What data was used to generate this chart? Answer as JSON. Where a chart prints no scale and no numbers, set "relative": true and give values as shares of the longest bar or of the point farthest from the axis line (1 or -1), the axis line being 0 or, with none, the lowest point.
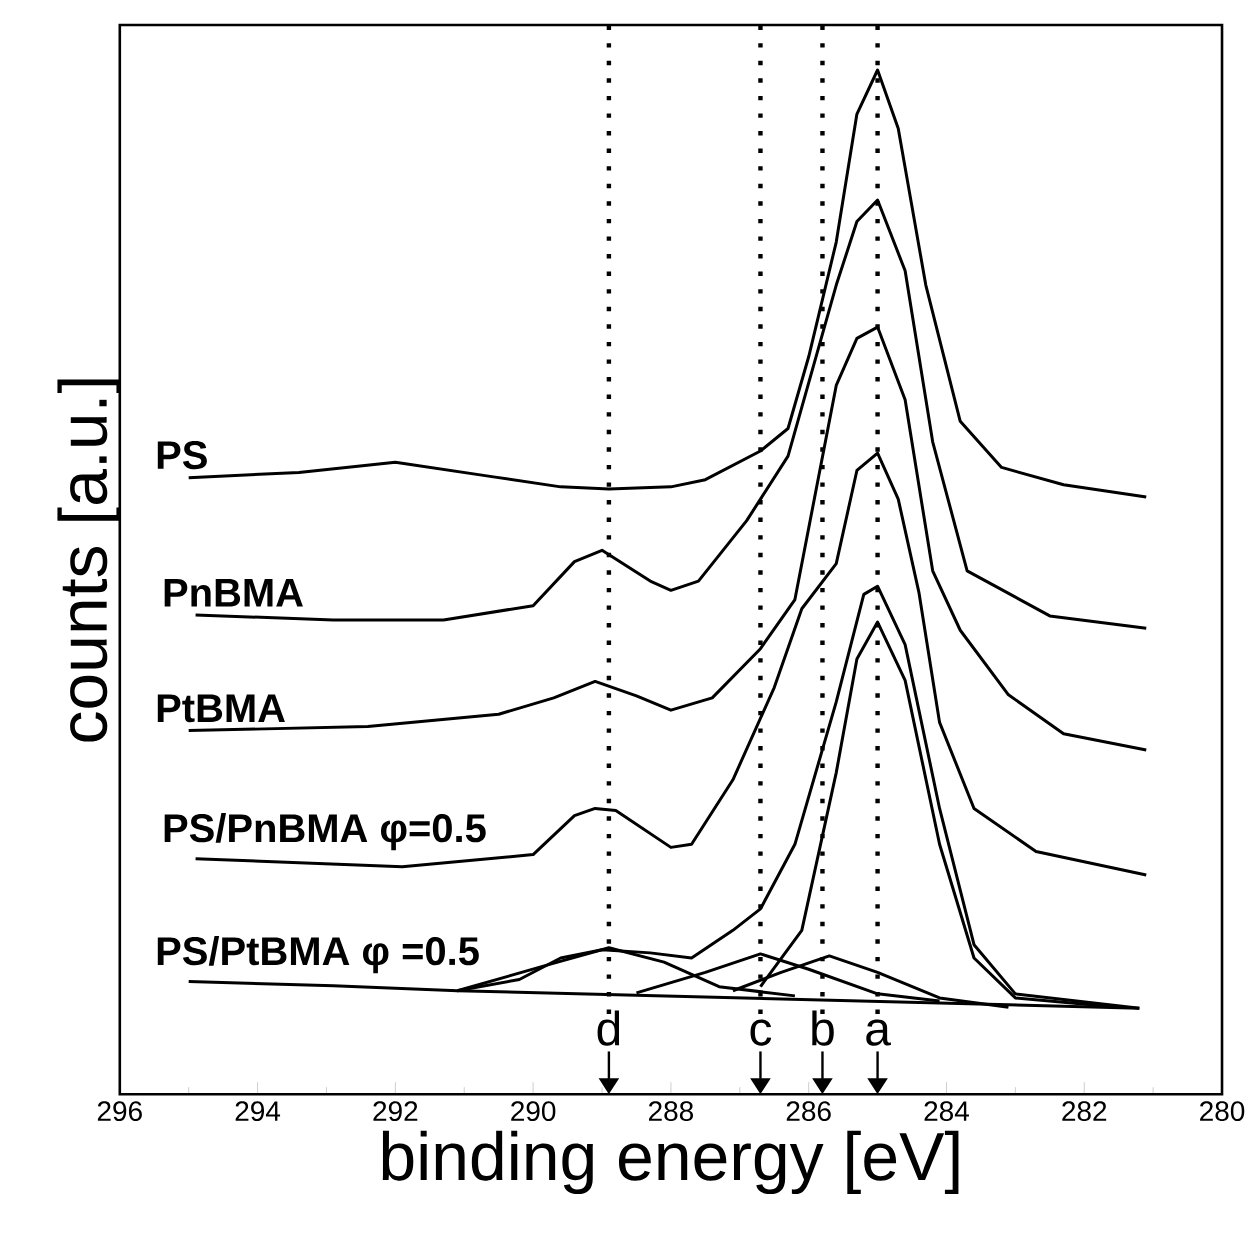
{
  "chart_data": {
    "type": "line",
    "xlabel": "binding energy [eV]",
    "ylabel": "counts [a.u.]",
    "xlim": [
      296,
      280
    ],
    "xticks": [
      296,
      294,
      292,
      290,
      288,
      286,
      284,
      282,
      280
    ],
    "relative": true,
    "series": [
      {
        "name": "PS",
        "color": "#000000",
        "x": [
          295.0,
          293.4,
          292.0,
          290.6,
          289.6,
          288.9,
          288.0,
          287.5,
          286.7,
          286.3,
          286.0,
          285.6,
          285.3,
          285.0,
          284.7,
          284.3,
          283.8,
          283.2,
          282.3,
          281.1
        ],
        "values": [
          0.602,
          0.607,
          0.617,
          0.603,
          0.593,
          0.591,
          0.593,
          0.6,
          0.628,
          0.65,
          0.72,
          0.832,
          0.957,
          1.0,
          0.943,
          0.79,
          0.657,
          0.612,
          0.595,
          0.583
        ]
      },
      {
        "name": "PnBMA",
        "color": "#000000",
        "x": [
          294.9,
          292.9,
          291.3,
          290.0,
          289.4,
          289.0,
          288.3,
          288.0,
          287.6,
          286.9,
          286.3,
          285.6,
          285.3,
          285.0,
          284.6,
          284.2,
          283.7,
          282.5,
          281.1
        ],
        "values": [
          0.468,
          0.463,
          0.463,
          0.477,
          0.52,
          0.531,
          0.501,
          0.492,
          0.501,
          0.56,
          0.623,
          0.79,
          0.852,
          0.873,
          0.804,
          0.637,
          0.511,
          0.467,
          0.455
        ]
      },
      {
        "name": "PtBMA",
        "color": "#000000",
        "x": [
          295.0,
          292.4,
          290.5,
          289.7,
          289.1,
          288.5,
          288.0,
          287.4,
          286.7,
          286.2,
          285.6,
          285.3,
          285.0,
          284.6,
          284.2,
          283.8,
          283.1,
          282.3,
          281.1
        ],
        "values": [
          0.355,
          0.359,
          0.371,
          0.387,
          0.403,
          0.389,
          0.375,
          0.387,
          0.435,
          0.483,
          0.692,
          0.738,
          0.749,
          0.678,
          0.511,
          0.453,
          0.39,
          0.352,
          0.336
        ]
      },
      {
        "name": "PS/PnBMA φ=0.5",
        "color": "#000000",
        "x": [
          294.9,
          291.9,
          290.0,
          289.4,
          289.1,
          288.8,
          288.0,
          287.7,
          287.1,
          286.5,
          286.1,
          285.6,
          285.3,
          285.0,
          284.7,
          284.4,
          284.1,
          283.6,
          282.7,
          281.1
        ],
        "values": [
          0.23,
          0.222,
          0.234,
          0.272,
          0.279,
          0.277,
          0.241,
          0.244,
          0.307,
          0.397,
          0.474,
          0.518,
          0.609,
          0.626,
          0.581,
          0.49,
          0.363,
          0.279,
          0.237,
          0.214
        ]
      },
      {
        "name": "PS/PtBMA φ =0.5",
        "color": "#000000",
        "x": [
          295.0,
          292.9,
          291.1,
          290.2,
          289.6,
          289.0,
          288.3,
          287.7,
          287.1,
          286.7,
          286.2,
          285.6,
          285.2,
          285.0,
          284.6,
          284.1,
          283.6,
          283.0,
          281.2
        ],
        "values": [
          0.11,
          0.106,
          0.101,
          0.112,
          0.133,
          0.141,
          0.138,
          0.133,
          0.16,
          0.181,
          0.244,
          0.383,
          0.488,
          0.496,
          0.439,
          0.279,
          0.146,
          0.098,
          0.084
        ]
      },
      {
        "color": "#000000",
        "x": [
          286.7,
          286.1,
          285.6,
          285.3,
          285.0,
          284.6,
          284.1,
          283.6,
          283.0,
          281.5
        ],
        "values": [
          0.105,
          0.16,
          0.314,
          0.425,
          0.461,
          0.404,
          0.244,
          0.133,
          0.094,
          0.085
        ]
      },
      {
        "color": "#000000",
        "x": [
          291.1,
          289.8,
          288.9,
          288.1,
          287.3,
          286.2
        ],
        "values": [
          0.101,
          0.126,
          0.143,
          0.129,
          0.105,
          0.096
        ]
      },
      {
        "color": "#000000",
        "x": [
          288.5,
          287.5,
          286.7,
          286.0,
          285.0,
          284.1
        ],
        "values": [
          0.099,
          0.119,
          0.137,
          0.122,
          0.098,
          0.091
        ]
      },
      {
        "color": "#000000",
        "x": [
          287.1,
          286.4,
          285.7,
          285.0,
          284.1,
          283.1
        ],
        "values": [
          0.101,
          0.119,
          0.135,
          0.119,
          0.094,
          0.085
        ]
      },
      {
        "color": "#000000",
        "x": [
          291.1,
          281.2
        ],
        "values": [
          0.101,
          0.084
        ]
      }
    ],
    "ref_lines": [
      {
        "axis": "x",
        "value": 288.9,
        "label": "d",
        "line_style": "dotted"
      },
      {
        "axis": "x",
        "value": 286.7,
        "label": "c",
        "line_style": "dotted"
      },
      {
        "axis": "x",
        "value": 285.8,
        "label": "b",
        "line_style": "dotted"
      },
      {
        "axis": "x",
        "value": 285.0,
        "label": "a",
        "line_style": "dotted"
      }
    ]
  }
}
